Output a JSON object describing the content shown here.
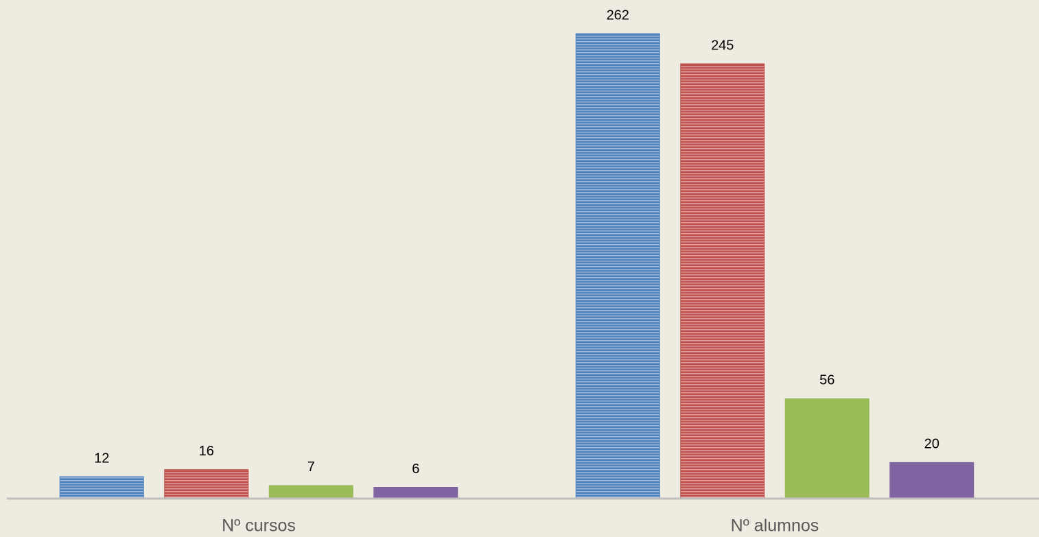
{
  "chart_data": {
    "type": "bar",
    "categories": [
      "Nº cursos",
      "Nº alumnos"
    ],
    "series": [
      {
        "color": "#4f81bd",
        "pattern": "horizontal",
        "values": [
          12,
          262
        ]
      },
      {
        "color": "#c0504d",
        "pattern": "horizontal",
        "values": [
          16,
          245
        ]
      },
      {
        "color": "#9bbb59",
        "values": [
          7,
          56
        ]
      },
      {
        "color": "#8064a2",
        "values": [
          6,
          20
        ]
      }
    ],
    "ylim": [
      0,
      281
    ]
  }
}
